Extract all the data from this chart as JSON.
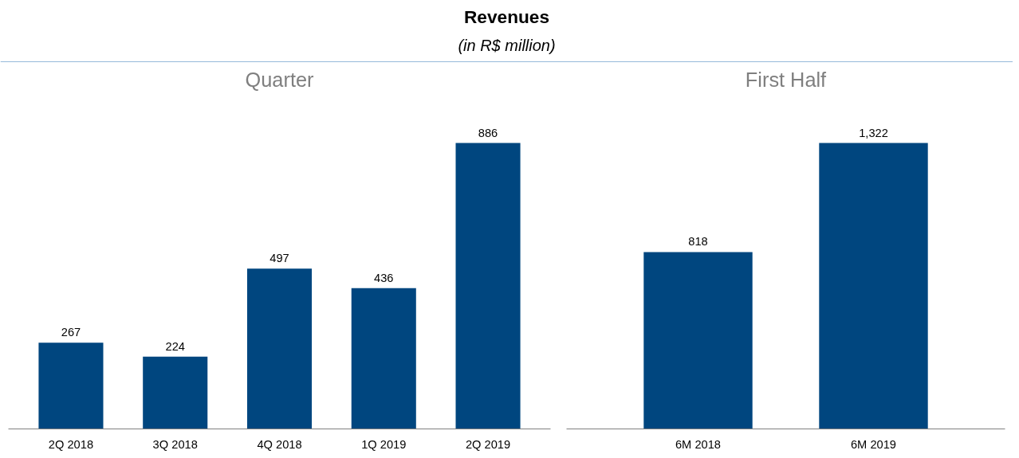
{
  "chart_data": [
    {
      "type": "other",
      "title": "Revenues",
      "subtitle": "(in R$ million)"
    },
    {
      "type": "bar",
      "title": "Quarter",
      "categories": [
        "2Q 2018",
        "3Q 2018",
        "4Q 2018",
        "1Q 2019",
        "2Q 2019"
      ],
      "values": [
        267,
        224,
        497,
        436,
        886
      ],
      "color": "#00467f",
      "data_labels": true
    },
    {
      "type": "bar",
      "title": "First Half",
      "categories": [
        "6M 2018",
        "6M 2019"
      ],
      "values": [
        818,
        1322
      ],
      "color": "#00467f",
      "value_labels": [
        "818",
        "1,322"
      ]
    }
  ]
}
